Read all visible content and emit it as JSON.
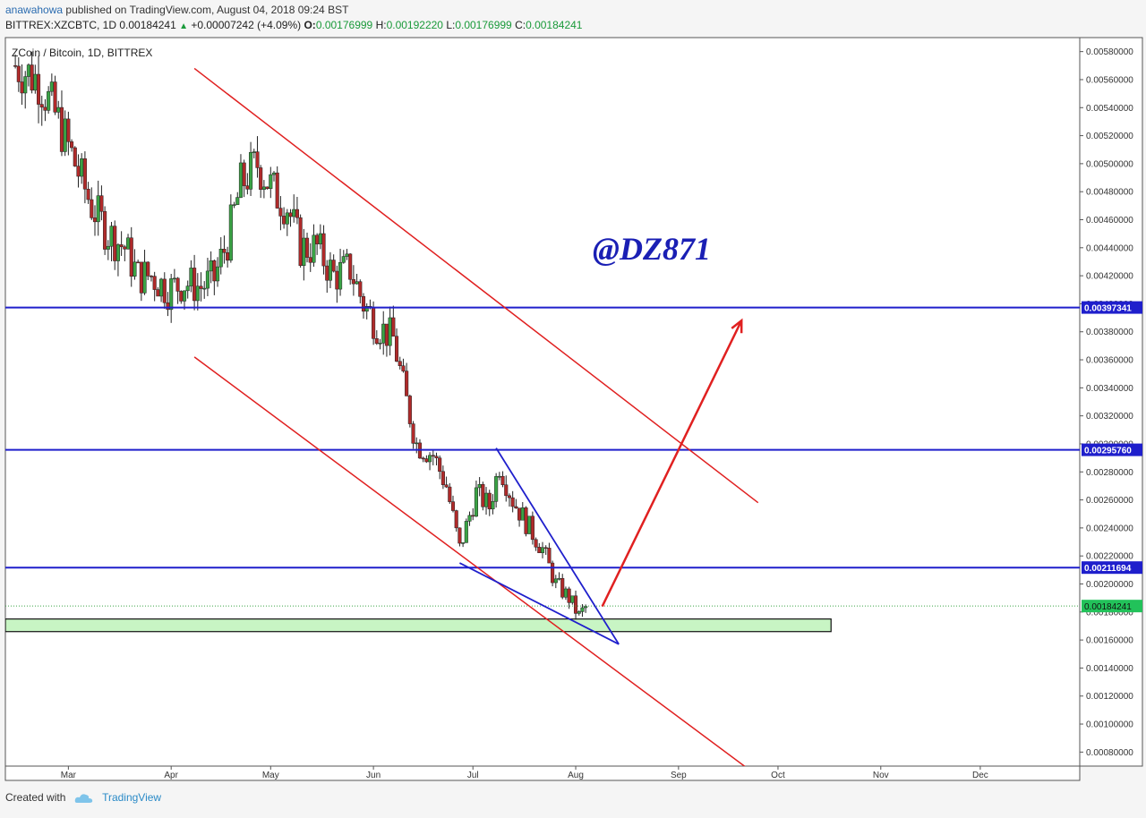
{
  "header": {
    "author": "anawahowa",
    "published": "published on TradingView.com, August 04, 2018 09:24 BST",
    "symbol": "BITTREX:XZCBTC, 1D",
    "last": "0.00184241",
    "change": "+0.00007242 (+4.09%)",
    "o_label": "O:",
    "o": "0.00176999",
    "h_label": "H:",
    "h": "0.00192220",
    "l_label": "L:",
    "l": "0.00176999",
    "c_label": "C:",
    "c": "0.00184241"
  },
  "footer": {
    "created_with": "Created with",
    "brand": "TradingView"
  },
  "colors": {
    "up": "#3aa345",
    "down": "#b02a2a",
    "hline": "#1f1fcc",
    "channel": "#e02020",
    "wedge": "#1f1fcc",
    "zone": "#c8f5c4",
    "watermark": "#1a1fb4",
    "last_price_bg": "#22c25a"
  },
  "chart_data": {
    "type": "candlestick",
    "title": "ZCoin / Bitcoin, 1D, BITTREX",
    "watermark": "@DZ871",
    "y_range": [
      0.0007,
      0.0059
    ],
    "x_range": [
      "2018-02-10",
      "2018-12-31"
    ],
    "y_ticks": [
      "0.00080000",
      "0.00100000",
      "0.00120000",
      "0.00140000",
      "0.00160000",
      "0.00180000",
      "0.00200000",
      "0.00220000",
      "0.00240000",
      "0.00260000",
      "0.00280000",
      "0.00300000",
      "0.00320000",
      "0.00340000",
      "0.00360000",
      "0.00380000",
      "0.00400000",
      "0.00420000",
      "0.00440000",
      "0.00460000",
      "0.00480000",
      "0.00500000",
      "0.00520000",
      "0.00540000",
      "0.00560000",
      "0.00580000"
    ],
    "x_ticks": [
      {
        "label": "Mar",
        "date": "2018-03-01"
      },
      {
        "label": "Apr",
        "date": "2018-04-01"
      },
      {
        "label": "May",
        "date": "2018-05-01"
      },
      {
        "label": "Jun",
        "date": "2018-06-01"
      },
      {
        "label": "Jul",
        "date": "2018-07-01"
      },
      {
        "label": "Aug",
        "date": "2018-08-01"
      },
      {
        "label": "Sep",
        "date": "2018-09-01"
      },
      {
        "label": "Oct",
        "date": "2018-10-01"
      },
      {
        "label": "Nov",
        "date": "2018-11-01"
      },
      {
        "label": "Dec",
        "date": "2018-12-01"
      }
    ],
    "close_anchors": [
      [
        "2018-02-13",
        0.0057
      ],
      [
        "2018-02-20",
        0.0056
      ],
      [
        "2018-02-26",
        0.0053
      ],
      [
        "2018-03-03",
        0.005
      ],
      [
        "2018-03-08",
        0.0047
      ],
      [
        "2018-03-13",
        0.0045
      ],
      [
        "2018-03-18",
        0.0044
      ],
      [
        "2018-03-22",
        0.0042
      ],
      [
        "2018-03-26",
        0.0042
      ],
      [
        "2018-03-31",
        0.0041
      ],
      [
        "2018-04-05",
        0.00415
      ],
      [
        "2018-04-10",
        0.00412
      ],
      [
        "2018-04-14",
        0.00418
      ],
      [
        "2018-04-18",
        0.00445
      ],
      [
        "2018-04-22",
        0.00485
      ],
      [
        "2018-04-27",
        0.005
      ],
      [
        "2018-05-02",
        0.0048
      ],
      [
        "2018-05-06",
        0.0047
      ],
      [
        "2018-05-10",
        0.0044
      ],
      [
        "2018-05-15",
        0.0044
      ],
      [
        "2018-05-20",
        0.0042
      ],
      [
        "2018-05-25",
        0.00425
      ],
      [
        "2018-05-29",
        0.004
      ],
      [
        "2018-06-02",
        0.00385
      ],
      [
        "2018-06-07",
        0.00375
      ],
      [
        "2018-06-11",
        0.0033
      ],
      [
        "2018-06-14",
        0.003
      ],
      [
        "2018-06-19",
        0.00292
      ],
      [
        "2018-06-23",
        0.0027
      ],
      [
        "2018-06-27",
        0.00225
      ],
      [
        "2018-07-02",
        0.00265
      ],
      [
        "2018-07-06",
        0.00255
      ],
      [
        "2018-07-09",
        0.00285
      ],
      [
        "2018-07-13",
        0.0026
      ],
      [
        "2018-07-18",
        0.0024
      ],
      [
        "2018-07-22",
        0.00225
      ],
      [
        "2018-07-26",
        0.002
      ],
      [
        "2018-07-30",
        0.0019
      ],
      [
        "2018-08-02",
        0.00177
      ],
      [
        "2018-08-04",
        0.00184
      ]
    ],
    "horizontal_levels": [
      {
        "price": 0.00397341,
        "label": "0.00397341"
      },
      {
        "price": 0.0029576,
        "label": "0.00295760"
      },
      {
        "price": 0.00211694,
        "label": "0.00211694"
      }
    ],
    "last_price": {
      "price": 0.00184241,
      "label": "0.00184241"
    },
    "support_zone": {
      "from": 0.00166,
      "to": 0.00175,
      "start": "2018-02-10",
      "end": "2018-10-17"
    },
    "channel_upper": {
      "p1": [
        "2018-04-08",
        0.00568
      ],
      "p2": [
        "2018-09-25",
        0.00258
      ]
    },
    "channel_lower": {
      "p1": [
        "2018-04-08",
        0.00362
      ],
      "p2": [
        "2018-09-22",
        0.00068
      ]
    },
    "wedge": {
      "top": [
        "2018-07-08",
        0.00297
      ],
      "apex": [
        "2018-08-14",
        0.00157
      ],
      "bottom": [
        "2018-06-27",
        0.00215
      ]
    },
    "arrow": {
      "from": [
        "2018-08-09",
        0.00184
      ],
      "to": [
        "2018-09-20",
        0.00388
      ]
    }
  }
}
